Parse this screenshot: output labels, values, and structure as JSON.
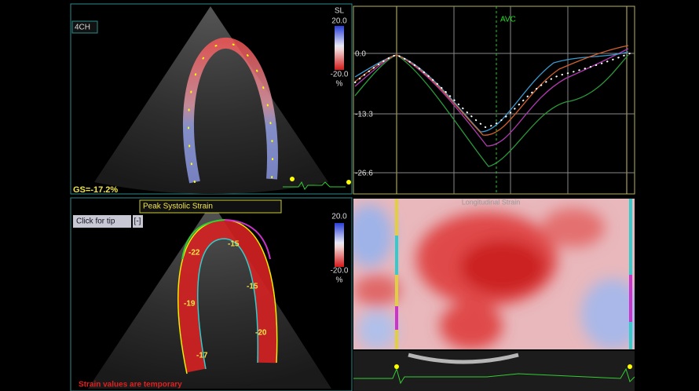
{
  "top_left": {
    "view_label": "4CH",
    "colorbar": {
      "title": "SL",
      "max": "20.0",
      "min": "-20.0",
      "unit": "%"
    },
    "global_strain": "GS=-17.2%"
  },
  "strain_plot": {
    "marker": "AVC",
    "yticks": [
      "0.0",
      "-13.3",
      "-26.6"
    ]
  },
  "bottom_left": {
    "title": "Peak Systolic Strain",
    "tip_button": "Click for tip",
    "collapse_button": "[-]",
    "colorbar": {
      "max": "20.0",
      "min": "-20.0",
      "unit": "%"
    },
    "segments": [
      -22,
      -15,
      -19,
      -15,
      -20,
      -17
    ],
    "warning": "Strain values are temporary"
  },
  "bottom_right": {
    "title": "Longitudinal Strain"
  }
}
